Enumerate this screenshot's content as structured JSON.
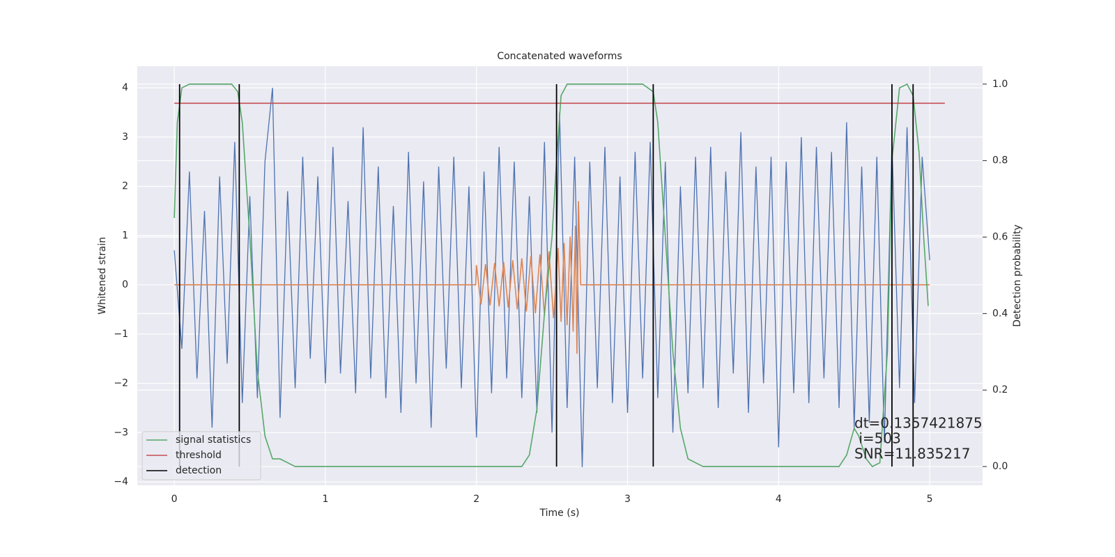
{
  "chart_data": {
    "type": "line",
    "title": "Concatenated waveforms",
    "xlabel": "Time (s)",
    "ylabel": "Whitened strain",
    "y2label": "Detection probability",
    "xlim": [
      -0.245,
      5.35
    ],
    "ylim": [
      -4.07,
      4.44
    ],
    "y2lim": [
      -0.049,
      1.047
    ],
    "xticks": [
      0,
      1,
      2,
      3,
      4,
      5
    ],
    "yticks": [
      {
        "value": -4,
        "label": "−4"
      },
      {
        "value": -3,
        "label": "−3"
      },
      {
        "value": -2,
        "label": "−2"
      },
      {
        "value": -1,
        "label": "−1"
      },
      0,
      1,
      2,
      3,
      4
    ],
    "y2ticks": [
      {
        "value": 0,
        "label": "0.0"
      },
      {
        "value": 0.2,
        "label": "0.2"
      },
      {
        "value": 0.4,
        "label": "0.4"
      },
      {
        "value": 0.6,
        "label": "0.6"
      },
      {
        "value": 0.8,
        "label": "0.8"
      },
      {
        "value": 1,
        "label": "1.0"
      }
    ],
    "grid": true,
    "legend": "lower left",
    "series": [
      {
        "color": "#4c72b0",
        "x": [
          0,
          0.05,
          0.1,
          0.15,
          0.2,
          0.25,
          0.3,
          0.35,
          0.4,
          0.45,
          0.5,
          0.55,
          0.6,
          0.65,
          0.7,
          0.75,
          0.8,
          0.85,
          0.9,
          0.95,
          1,
          1.05,
          1.1,
          1.15,
          1.2,
          1.25,
          1.3,
          1.35,
          1.4,
          1.45,
          1.5,
          1.55,
          1.6,
          1.65,
          1.7,
          1.75,
          1.8,
          1.85,
          1.9,
          1.95,
          2,
          2.05,
          2.1,
          2.15,
          2.2,
          2.25,
          2.3,
          2.35,
          2.4,
          2.45,
          2.5,
          2.55,
          2.6,
          2.65,
          2.7,
          2.75,
          2.8,
          2.85,
          2.9,
          2.95,
          3,
          3.05,
          3.1,
          3.15,
          3.2,
          3.25,
          3.3,
          3.35,
          3.4,
          3.45,
          3.5,
          3.55,
          3.6,
          3.65,
          3.7,
          3.75,
          3.8,
          3.85,
          3.9,
          3.95,
          4,
          4.05,
          4.1,
          4.15,
          4.2,
          4.25,
          4.3,
          4.35,
          4.4,
          4.45,
          4.5,
          4.55,
          4.6,
          4.65,
          4.7,
          4.75,
          4.8,
          4.85,
          4.9,
          4.95,
          5
        ],
        "values": [
          0.7,
          -1.3,
          2.3,
          -1.9,
          1.5,
          -2.9,
          2.2,
          -1.6,
          2.9,
          -2.4,
          1.8,
          -2.3,
          2.5,
          4.0,
          -2.7,
          1.9,
          -2.1,
          2.6,
          -1.5,
          2.2,
          -2.0,
          2.8,
          -1.8,
          1.7,
          -2.2,
          3.2,
          -1.9,
          2.4,
          -2.3,
          1.6,
          -2.6,
          2.7,
          -2.0,
          2.1,
          -2.9,
          2.4,
          -1.7,
          2.6,
          -2.1,
          2.0,
          -3.1,
          2.3,
          -2.2,
          2.8,
          -1.9,
          2.5,
          -2.3,
          1.8,
          -2.6,
          2.9,
          -3.0,
          3.5,
          -2.5,
          2.6,
          -3.7,
          2.5,
          -2.1,
          2.8,
          -2.4,
          2.2,
          -2.6,
          2.7,
          -1.9,
          2.9,
          -2.3,
          2.5,
          -3.0,
          2.0,
          -2.2,
          2.6,
          -2.1,
          2.8,
          -2.5,
          2.3,
          -1.8,
          3.1,
          -2.6,
          2.4,
          -2.0,
          2.6,
          -3.3,
          2.5,
          -2.2,
          3.0,
          -2.4,
          2.8,
          -1.9,
          2.7,
          -2.5,
          3.3,
          -2.9,
          2.4,
          -2.8,
          2.6,
          -3.2,
          2.9,
          -2.1,
          3.2,
          -2.4,
          2.6,
          0.5
        ]
      },
      {
        "color": "#dd8452",
        "x": [
          0,
          1.995,
          2.0,
          2.03,
          2.06,
          2.09,
          2.12,
          2.15,
          2.18,
          2.21,
          2.24,
          2.27,
          2.3,
          2.33,
          2.36,
          2.39,
          2.42,
          2.45,
          2.48,
          2.51,
          2.54,
          2.56,
          2.58,
          2.6,
          2.62,
          2.64,
          2.655,
          2.665,
          2.675,
          2.69,
          5
        ],
        "values": [
          0,
          0,
          0.4,
          -0.4,
          0.42,
          -0.42,
          0.44,
          -0.44,
          0.46,
          -0.46,
          0.5,
          -0.5,
          0.54,
          -0.54,
          0.58,
          -0.58,
          0.62,
          -0.62,
          0.68,
          -0.68,
          0.75,
          -0.75,
          0.85,
          -0.82,
          0.98,
          -0.95,
          1.2,
          -1.4,
          1.7,
          0,
          0
        ]
      },
      {
        "name": "signal statistics",
        "color": "#55a868",
        "axis": "y2",
        "x": [
          0,
          0.02,
          0.05,
          0.1,
          0.38,
          0.42,
          0.45,
          0.5,
          0.55,
          0.6,
          0.65,
          0.7,
          0.75,
          0.8,
          2.3,
          2.35,
          2.4,
          2.45,
          2.5,
          2.53,
          2.56,
          2.6,
          3.1,
          3.17,
          3.2,
          3.25,
          3.3,
          3.35,
          3.4,
          3.5,
          4.1,
          4.4,
          4.45,
          4.5,
          4.53,
          4.58,
          4.62,
          4.67,
          4.72,
          4.75,
          4.8,
          4.85,
          4.89,
          4.93,
          4.96,
          4.99
        ],
        "values": [
          0.65,
          0.9,
          0.99,
          1.0,
          1.0,
          0.98,
          0.9,
          0.6,
          0.25,
          0.08,
          0.02,
          0.02,
          0.01,
          0.0,
          0.0,
          0.03,
          0.15,
          0.4,
          0.6,
          0.8,
          0.97,
          1.0,
          1.0,
          0.98,
          0.9,
          0.6,
          0.3,
          0.1,
          0.02,
          0.0,
          0.0,
          0.0,
          0.03,
          0.1,
          0.08,
          0.02,
          0.0,
          0.01,
          0.3,
          0.8,
          0.99,
          1.0,
          0.97,
          0.82,
          0.6,
          0.42
        ]
      },
      {
        "name": "threshold",
        "color": "#c44e52",
        "axis": "y2",
        "x": [
          0,
          5.1
        ],
        "values": [
          0.95,
          0.95
        ]
      }
    ],
    "detection": {
      "name": "detection",
      "color": "#000000",
      "x": [
        0.035,
        0.43,
        2.53,
        3.17,
        4.75,
        4.89
      ],
      "range": [
        0,
        1
      ]
    },
    "annotation": [
      "dt=0.1357421875",
      " i=503",
      "SNR=11.835217"
    ]
  }
}
